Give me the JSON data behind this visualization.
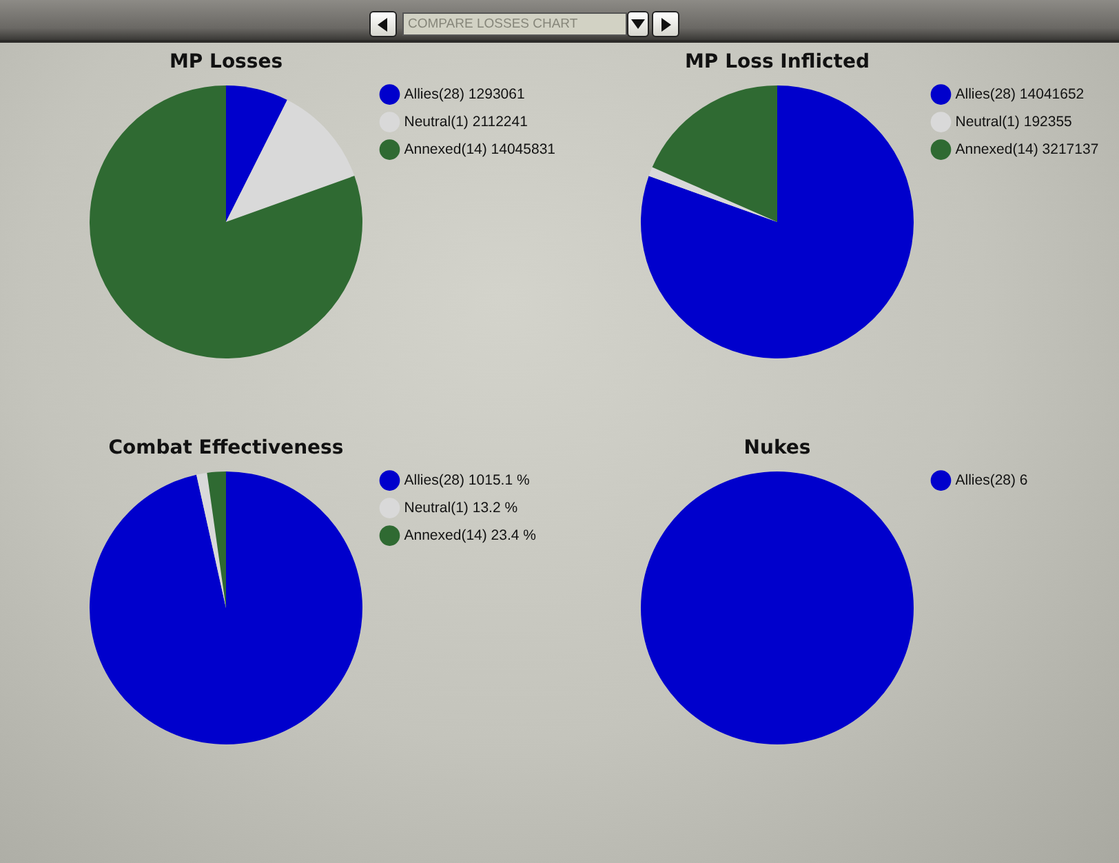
{
  "chart_data": [
    {
      "type": "other",
      "title": "COMPARE LOSSES CHART"
    },
    {
      "type": "pie",
      "title": "MP Losses",
      "categories": [
        "Allies(28)",
        "Neutral(1)",
        "Annexed(14)"
      ],
      "values": [
        1293061,
        2112241,
        14045831
      ],
      "value_labels": [
        "1293061",
        "2112241",
        "14045831"
      ],
      "colors": [
        "#0000cc",
        "#d9d9d9",
        "#2f6a32"
      ],
      "legend": "top right"
    },
    {
      "type": "pie",
      "title": "MP Loss Inflicted",
      "categories": [
        "Allies(28)",
        "Neutral(1)",
        "Annexed(14)"
      ],
      "values": [
        14041652,
        192355,
        3217137
      ],
      "value_labels": [
        "14041652",
        "192355",
        "3217137"
      ],
      "colors": [
        "#0000cc",
        "#d9d9d9",
        "#2f6a32"
      ],
      "legend": "top right"
    },
    {
      "type": "pie",
      "title": "Combat Effectiveness",
      "categories": [
        "Allies(28)",
        "Neutral(1)",
        "Annexed(14)"
      ],
      "values": [
        1015.1,
        13.2,
        23.4
      ],
      "value_labels": [
        "1015.1 %",
        "13.2 %",
        "23.4 %"
      ],
      "colors": [
        "#0000cc",
        "#d9d9d9",
        "#2f6a32"
      ],
      "legend": "top right"
    },
    {
      "type": "pie",
      "title": "Nukes",
      "categories": [
        "Allies(28)"
      ],
      "values": [
        6
      ],
      "value_labels": [
        "6"
      ],
      "colors": [
        "#0000cc"
      ],
      "legend": "top right"
    }
  ]
}
